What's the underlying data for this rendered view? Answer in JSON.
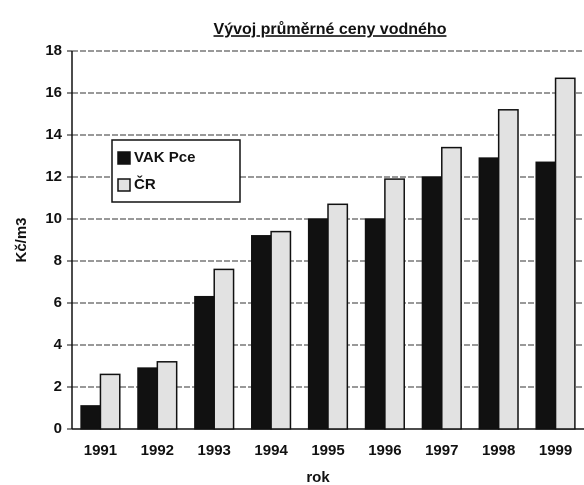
{
  "chart_data": {
    "type": "bar",
    "title": "Vývoj průměrné ceny vodného",
    "x_label": "rok",
    "y_label": "Kč/m3",
    "categories": [
      "1991",
      "1992",
      "1993",
      "1994",
      "1995",
      "1996",
      "1997",
      "1998",
      "1999"
    ],
    "series": [
      {
        "name": "VAK Pce",
        "color": "#111111",
        "values": [
          1.1,
          2.9,
          6.3,
          9.2,
          10.0,
          10.0,
          12.0,
          12.9,
          12.7
        ]
      },
      {
        "name": "ČR",
        "color": "#e2e2e2",
        "values": [
          2.6,
          3.2,
          7.6,
          9.4,
          10.7,
          11.9,
          13.4,
          15.2,
          16.7
        ]
      }
    ],
    "ylim": [
      0,
      18
    ],
    "yticks": [
      0,
      2,
      4,
      6,
      8,
      10,
      12,
      14,
      16,
      18
    ],
    "grid": true
  }
}
